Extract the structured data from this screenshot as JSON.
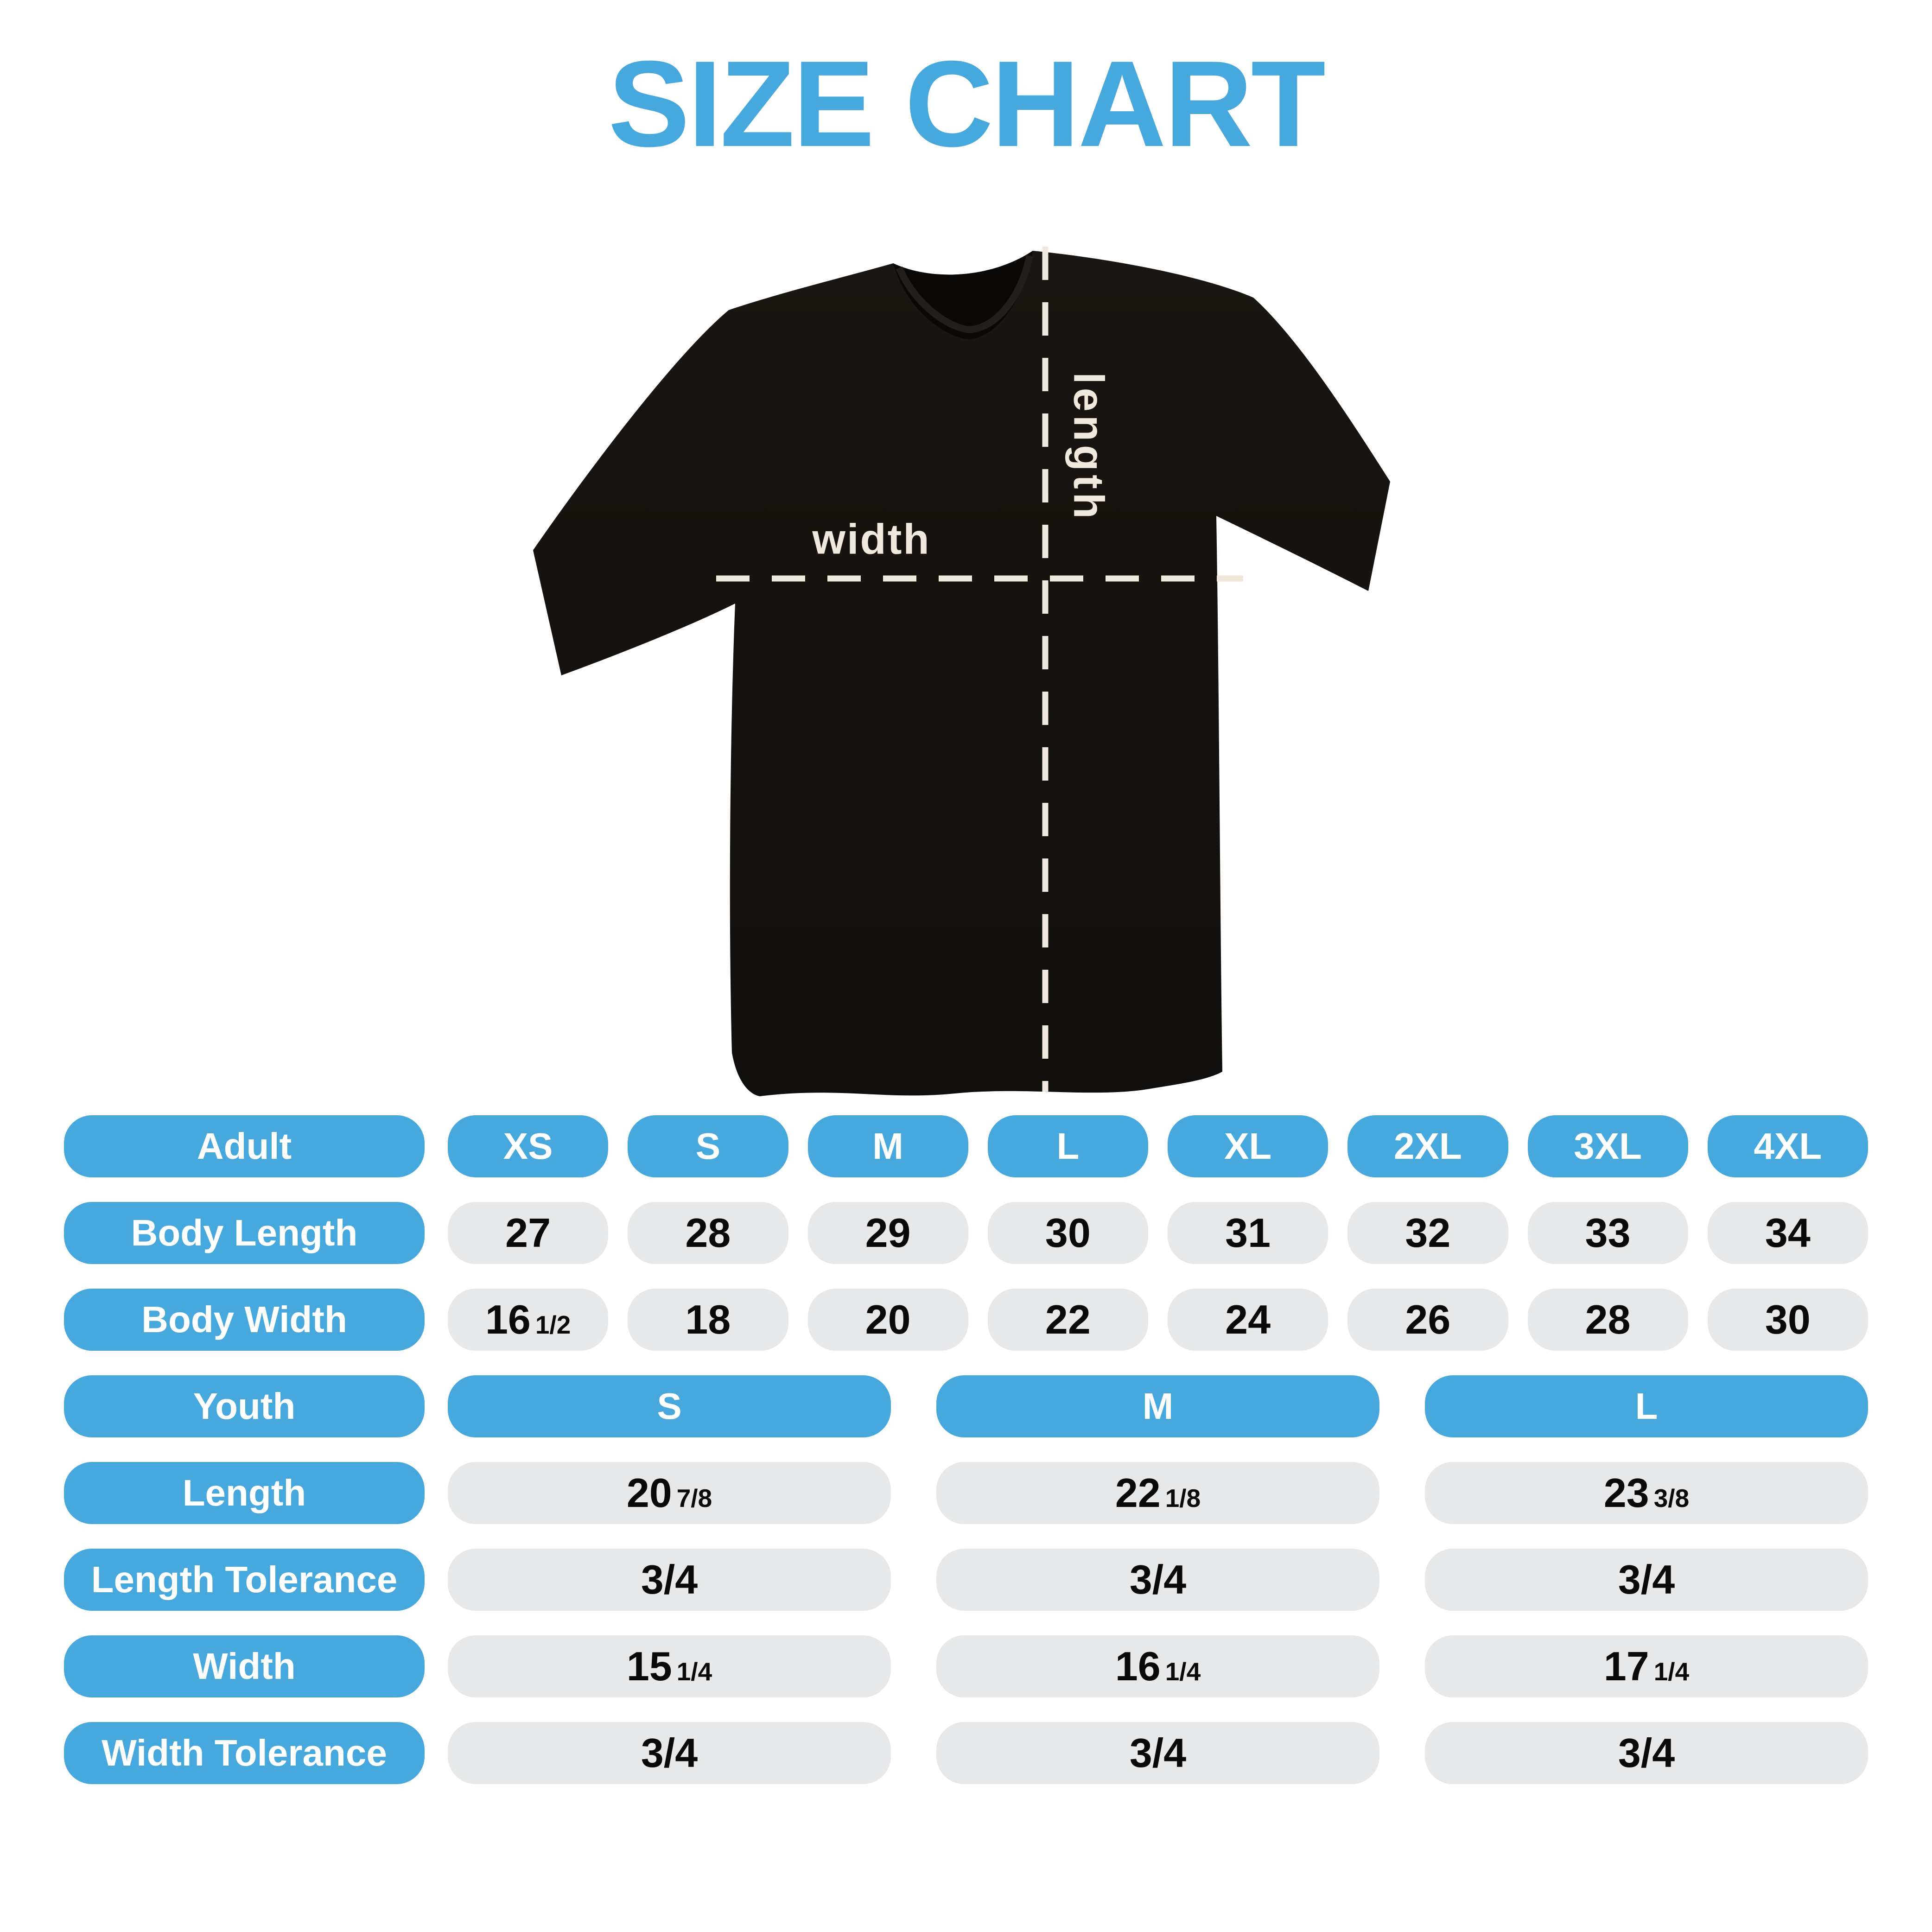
{
  "title": "SIZE CHART",
  "colors": {
    "accent_blue": "#46A8DC",
    "pill_gray": "#E6E8E9",
    "number_black": "#0A0A0A",
    "measure_cream": "#EFE9DC",
    "shirt_black": "#15120F"
  },
  "shirt": {
    "width_label": "width",
    "length_label": "length"
  },
  "adult_table": {
    "header": [
      "Adult",
      "XS",
      "S",
      "M",
      "L",
      "XL",
      "2XL",
      "3XL",
      "4XL"
    ],
    "rows": [
      {
        "label": "Body Length",
        "values": [
          {
            "main": "27"
          },
          {
            "main": "28"
          },
          {
            "main": "29"
          },
          {
            "main": "30"
          },
          {
            "main": "31"
          },
          {
            "main": "32"
          },
          {
            "main": "33"
          },
          {
            "main": "34"
          }
        ]
      },
      {
        "label": "Body Width",
        "values": [
          {
            "main": "16",
            "frac": "1/2"
          },
          {
            "main": "18"
          },
          {
            "main": "20"
          },
          {
            "main": "22"
          },
          {
            "main": "24"
          },
          {
            "main": "26"
          },
          {
            "main": "28"
          },
          {
            "main": "30"
          }
        ]
      }
    ]
  },
  "youth_table": {
    "header": [
      "Youth",
      "S",
      "M",
      "L"
    ],
    "rows": [
      {
        "label": "Length",
        "values": [
          {
            "main": "20",
            "frac": "7/8"
          },
          {
            "main": "22",
            "frac": "1/8"
          },
          {
            "main": "23",
            "frac": "3/8"
          }
        ]
      },
      {
        "label": "Length Tolerance",
        "values": [
          {
            "main": "3/4"
          },
          {
            "main": "3/4"
          },
          {
            "main": "3/4"
          }
        ]
      },
      {
        "label": "Width",
        "values": [
          {
            "main": "15",
            "frac": "1/4"
          },
          {
            "main": "16",
            "frac": "1/4"
          },
          {
            "main": "17",
            "frac": "1/4"
          }
        ]
      },
      {
        "label": "Width Tolerance",
        "values": [
          {
            "main": "3/4"
          },
          {
            "main": "3/4"
          },
          {
            "main": "3/4"
          }
        ]
      }
    ]
  },
  "chart_data": [
    {
      "type": "table",
      "title": "Adult t-shirt sizes (inches)",
      "columns": [
        "Adult",
        "XS",
        "S",
        "M",
        "L",
        "XL",
        "2XL",
        "3XL",
        "4XL"
      ],
      "rows": [
        [
          "Body Length",
          "27",
          "28",
          "29",
          "30",
          "31",
          "32",
          "33",
          "34"
        ],
        [
          "Body Width",
          "16 1/2",
          "18",
          "20",
          "22",
          "24",
          "26",
          "28",
          "30"
        ]
      ]
    },
    {
      "type": "table",
      "title": "Youth t-shirt sizes (inches)",
      "columns": [
        "Youth",
        "S",
        "M",
        "L"
      ],
      "rows": [
        [
          "Length",
          "20 7/8",
          "22 1/8",
          "23 3/8"
        ],
        [
          "Length Tolerance",
          "3/4",
          "3/4",
          "3/4"
        ],
        [
          "Width",
          "15 1/4",
          "16 1/4",
          "17 1/4"
        ],
        [
          "Width Tolerance",
          "3/4",
          "3/4",
          "3/4"
        ]
      ]
    }
  ]
}
